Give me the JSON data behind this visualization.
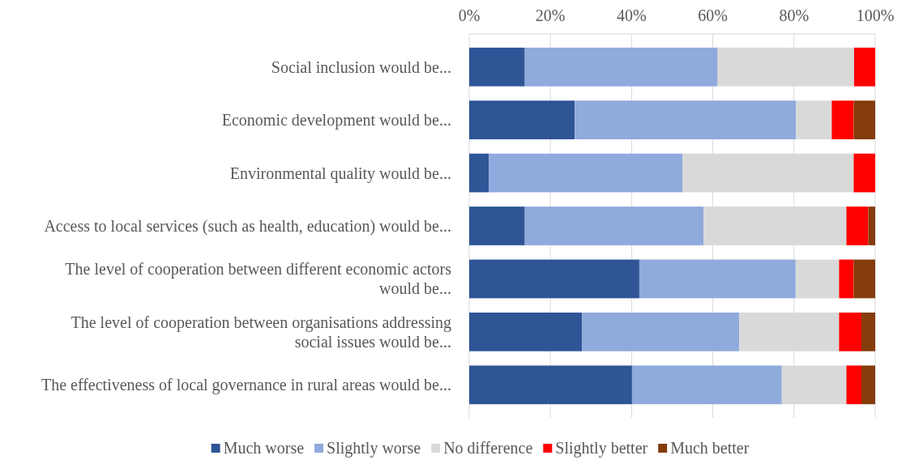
{
  "chart_data": {
    "type": "bar",
    "orientation": "horizontal",
    "stacked": true,
    "categories": [
      "Social inclusion would be...",
      "Economic development would be...",
      "Environmental quality would be...",
      "Access to local services (such as health, education) would be...",
      "The level of cooperation between different economic actors would be...",
      "The level of cooperation between organisations addressing social issues would be...",
      "The effectiveness of local governance in rural areas would be..."
    ],
    "series": [
      {
        "name": "Much worse",
        "color": "#2f5597",
        "values": [
          13.7,
          26.0,
          4.8,
          13.7,
          41.9,
          27.8,
          40.1
        ]
      },
      {
        "name": "Slightly worse",
        "color": "#8faadc",
        "values": [
          47.5,
          54.5,
          47.7,
          44.0,
          38.5,
          38.7,
          36.9
        ]
      },
      {
        "name": "No difference",
        "color": "#d9d9d9",
        "values": [
          33.6,
          8.8,
          42.2,
          35.2,
          10.7,
          24.6,
          15.9
        ]
      },
      {
        "name": "Slightly better",
        "color": "#ff0000",
        "values": [
          5.2,
          5.4,
          5.3,
          5.4,
          3.6,
          5.5,
          3.7
        ]
      },
      {
        "name": "Much better",
        "color": "#843c0c",
        "values": [
          0,
          5.3,
          0,
          1.7,
          5.3,
          3.4,
          3.4
        ]
      }
    ],
    "xlim": [
      0,
      100
    ],
    "xticks": [
      {
        "value": 0,
        "label": "0%"
      },
      {
        "value": 20,
        "label": "20%"
      },
      {
        "value": 40,
        "label": "40%"
      },
      {
        "value": 60,
        "label": "60%"
      },
      {
        "value": 80,
        "label": "80%"
      },
      {
        "value": 100,
        "label": "100%"
      }
    ],
    "grid": "x",
    "legend": "bottom"
  }
}
